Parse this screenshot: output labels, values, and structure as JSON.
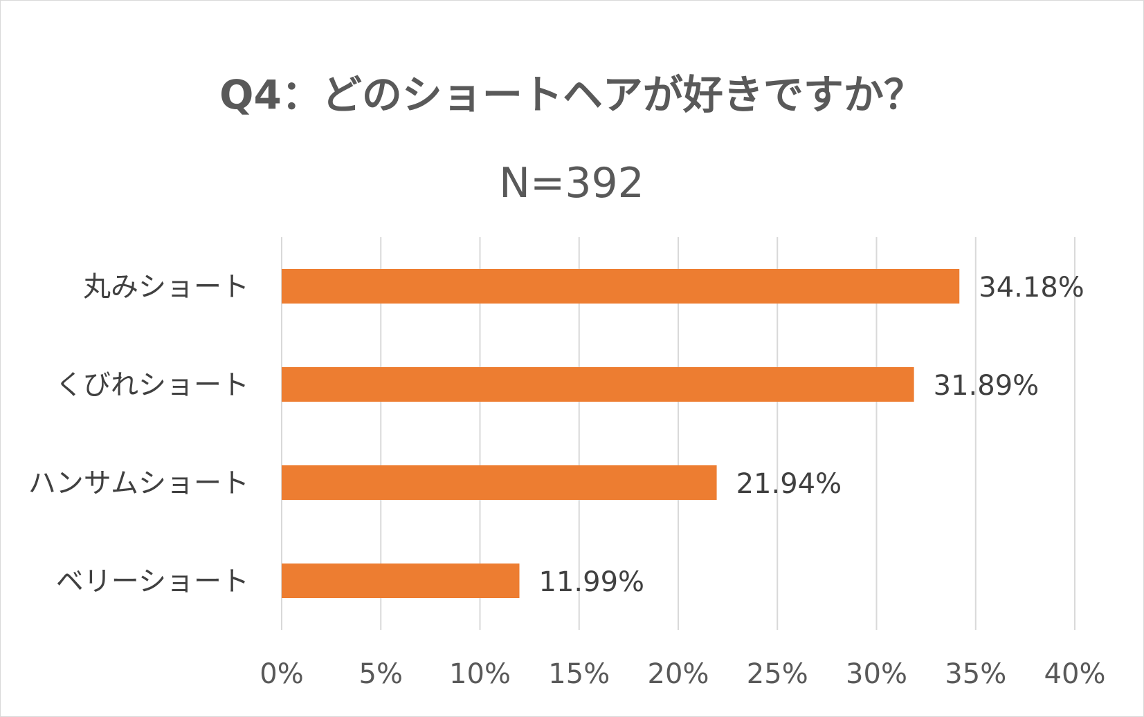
{
  "chart_data": {
    "type": "bar",
    "orientation": "horizontal",
    "title": "Q4：どのショートヘアが好きですか？",
    "subtitle": "N=392",
    "categories": [
      "丸みショート",
      "くびれショート",
      "ハンサムショート",
      "ベリーショート"
    ],
    "values": [
      34.18,
      31.89,
      21.94,
      11.99
    ],
    "data_labels": [
      "34.18%",
      "31.89%",
      "21.94%",
      "11.99%"
    ],
    "x_ticks": [
      0,
      5,
      10,
      15,
      20,
      25,
      30,
      35,
      40
    ],
    "x_tick_labels": [
      "0%",
      "5%",
      "10%",
      "15%",
      "20%",
      "25%",
      "30%",
      "35%",
      "40%"
    ],
    "xlim": [
      0,
      40
    ],
    "grid": "vertical",
    "legend": "none",
    "bar_color": "#ED7D31",
    "grid_color": "#D9D9D9",
    "xlabel": "",
    "ylabel": ""
  }
}
